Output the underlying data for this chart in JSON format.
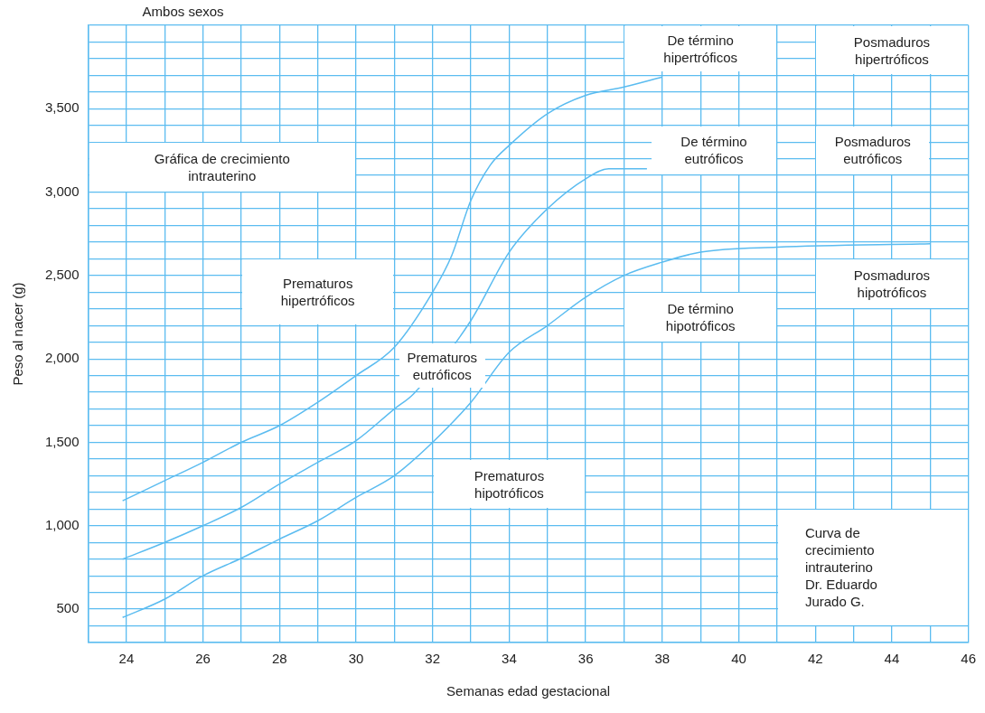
{
  "chart_data": {
    "type": "line",
    "title": "Ambos sexos",
    "xlabel": "Semanas edad gestacional",
    "ylabel": "Peso al nacer (g)",
    "xlim": [
      23,
      46
    ],
    "xticks": [
      {
        "value": 23,
        "label": null
      },
      24,
      {
        "value": 25,
        "label": null
      },
      26,
      {
        "value": 27,
        "label": null
      },
      28,
      {
        "value": 29,
        "label": null
      },
      30,
      {
        "value": 31,
        "label": null
      },
      32,
      {
        "value": 33,
        "label": null
      },
      34,
      {
        "value": 35,
        "label": null
      },
      36,
      {
        "value": 37,
        "label": null
      },
      38,
      {
        "value": 39,
        "label": null
      },
      40,
      {
        "value": 41,
        "label": null
      },
      42,
      {
        "value": 43,
        "label": null
      },
      44,
      {
        "value": 45,
        "label": null
      },
      46
    ],
    "ylim": [
      300,
      4000
    ],
    "yticks": [
      {
        "value": 300,
        "label": null
      },
      {
        "value": 400,
        "label": null
      },
      500,
      {
        "value": 600,
        "label": null
      },
      {
        "value": 700,
        "label": null
      },
      {
        "value": 800,
        "label": null
      },
      {
        "value": 900,
        "label": null
      },
      {
        "value": 1000,
        "label": "1,000"
      },
      {
        "value": 1100,
        "label": null
      },
      {
        "value": 1200,
        "label": null
      },
      {
        "value": 1300,
        "label": null
      },
      {
        "value": 1400,
        "label": null
      },
      {
        "value": 1500,
        "label": "1,500"
      },
      {
        "value": 1600,
        "label": null
      },
      {
        "value": 1700,
        "label": null
      },
      {
        "value": 1800,
        "label": null
      },
      {
        "value": 1900,
        "label": null
      },
      {
        "value": 2000,
        "label": "2,000"
      },
      {
        "value": 2100,
        "label": null
      },
      {
        "value": 2200,
        "label": null
      },
      {
        "value": 2300,
        "label": null
      },
      {
        "value": 2400,
        "label": null
      },
      {
        "value": 2500,
        "label": "2,500"
      },
      {
        "value": 2600,
        "label": null
      },
      {
        "value": 2700,
        "label": null
      },
      {
        "value": 2800,
        "label": null
      },
      {
        "value": 2900,
        "label": null
      },
      {
        "value": 3000,
        "label": "3,000"
      },
      {
        "value": 3100,
        "label": null
      },
      {
        "value": 3200,
        "label": null
      },
      {
        "value": 3300,
        "label": null
      },
      {
        "value": 3400,
        "label": null
      },
      {
        "value": 3500,
        "label": "3,500"
      },
      {
        "value": 3600,
        "label": null
      },
      {
        "value": 3700,
        "label": null
      },
      {
        "value": 3800,
        "label": null
      },
      {
        "value": 3900,
        "label": null
      },
      {
        "value": 4000,
        "label": null
      }
    ],
    "grid": true,
    "legend": false,
    "marker": "none",
    "line_style": "solid",
    "series": [
      {
        "color": "#5bbcf0",
        "x": [
          23.9,
          25,
          26,
          27,
          28,
          29,
          30,
          31,
          32,
          32.5,
          33,
          33.5,
          34,
          35,
          36,
          37,
          38
        ],
        "values": [
          1150,
          1270,
          1380,
          1500,
          1600,
          1740,
          1900,
          2070,
          2400,
          2620,
          2950,
          3160,
          3280,
          3470,
          3580,
          3630,
          3690
        ]
      },
      {
        "color": "#5bbcf0",
        "x": [
          23.9,
          25,
          26,
          27,
          28,
          29,
          30,
          31,
          31.5,
          33,
          34,
          35,
          36,
          36.6,
          37.6
        ],
        "values": [
          800,
          900,
          1000,
          1110,
          1250,
          1380,
          1510,
          1700,
          1790,
          2230,
          2640,
          2900,
          3080,
          3140,
          3140
        ]
      },
      {
        "color": "#5bbcf0",
        "x": [
          23.9,
          25,
          26,
          27,
          28,
          29,
          30,
          31,
          32,
          33,
          34,
          35,
          36,
          37,
          38,
          39,
          41,
          45
        ],
        "values": [
          450,
          560,
          700,
          805,
          920,
          1030,
          1170,
          1300,
          1500,
          1740,
          2040,
          2200,
          2370,
          2500,
          2580,
          2640,
          2670,
          2690
        ]
      }
    ],
    "annotations": [
      "Gráfica de crecimiento\nintrauterino",
      "Prematuros\nhipertróficos",
      "Prematuros\neutróficos",
      "Prematuros\nhipotróficos",
      "De término\nhipertróficos",
      "De término\neutróficos",
      "De término\nhipotróficos",
      "Posmaduros\nhipertróficos",
      "Posmaduros\neutróficos",
      "Posmaduros\nhipotróficos",
      "Curva de\ncrecimiento\nintrauterino\nDr. Eduardo\nJurado G."
    ]
  }
}
